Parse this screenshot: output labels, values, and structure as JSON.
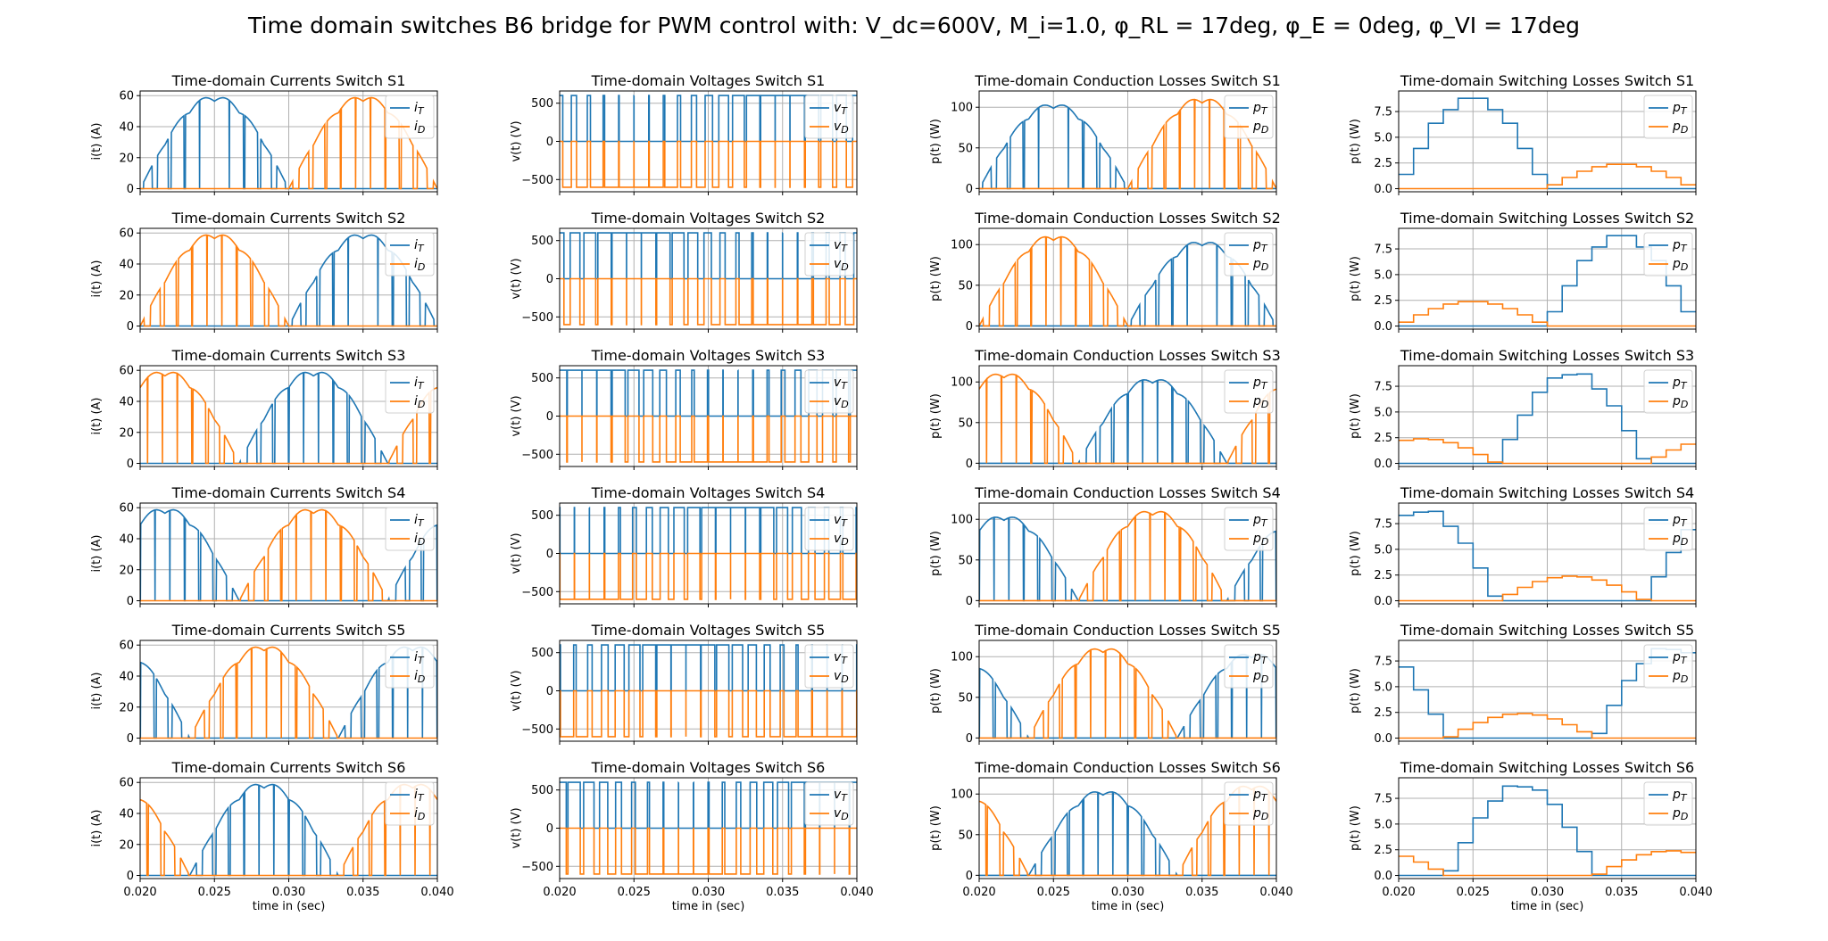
{
  "figure": {
    "suptitle": "Time domain switches B6 bridge for PWM control with: V_dc=600V, M_i=1.0, φ_RL = 17deg, φ_E = 0deg, φ_VI = 17deg",
    "time_label": "time in (sec)"
  },
  "colors": {
    "T": "#1f77b4",
    "D": "#ff7f0e",
    "grid": "#b0b0b0"
  },
  "chart_data": {
    "type": "line",
    "x_range": [
      0.02,
      0.04
    ],
    "x_ticks": [
      "0.020",
      "0.025",
      "0.030",
      "0.035",
      "0.040"
    ],
    "pwm_pulses": 20,
    "switches": [
      {
        "name": "S1",
        "phase_deg": 0
      },
      {
        "name": "S2",
        "phase_deg": 180
      },
      {
        "name": "S3",
        "phase_deg": 120
      },
      {
        "name": "S4",
        "phase_deg": 300
      },
      {
        "name": "S5",
        "phase_deg": 240
      },
      {
        "name": "S6",
        "phase_deg": 60
      }
    ],
    "columns": [
      {
        "key": "current",
        "title": "Time-domain Currents Switch",
        "ylabel": "i(t) (A)",
        "legend": [
          "iT",
          "iD"
        ],
        "ylim": [
          -2,
          63
        ],
        "yticks": [
          0,
          20,
          40,
          60
        ],
        "ytick_labels": [
          "0",
          "20",
          "40",
          "60"
        ],
        "peak_T": 60,
        "peak_D": 60
      },
      {
        "key": "voltage",
        "title": "Time-domain Voltages Switch",
        "ylabel": "v(t) (V)",
        "legend": [
          "vT",
          "vD"
        ],
        "ylim": [
          -660,
          660
        ],
        "yticks": [
          -500,
          0,
          500
        ],
        "ytick_labels": [
          "−500",
          "0",
          "500"
        ],
        "level": 600
      },
      {
        "key": "conduction",
        "title": "Time-domain Conduction Losses Switch",
        "ylabel": "p(t) (W)",
        "legend": [
          "pT",
          "pD"
        ],
        "ylim": [
          -4,
          120
        ],
        "yticks": [
          0,
          50,
          100
        ],
        "ytick_labels": [
          "0",
          "50",
          "100"
        ],
        "peak_T": 105,
        "peak_D": 112
      },
      {
        "key": "switching",
        "title": "Time-domain Switching Losses Switch",
        "ylabel": "p(t) (W)",
        "legend": [
          "pT",
          "pD"
        ],
        "ylim": [
          -0.3,
          9.5
        ],
        "yticks": [
          0,
          2.5,
          5,
          7.5
        ],
        "ytick_labels": [
          "0.0",
          "2.5",
          "5.0",
          "7.5"
        ],
        "peak_T": 9.0,
        "peak_D": 2.4
      }
    ]
  }
}
